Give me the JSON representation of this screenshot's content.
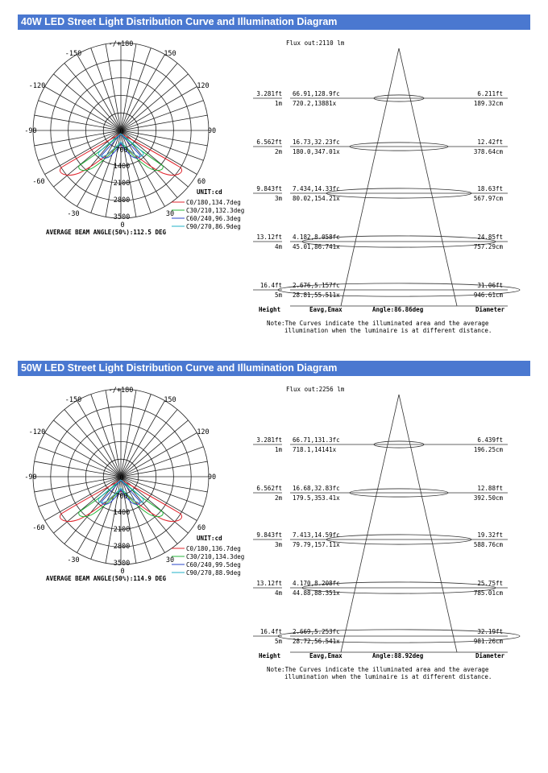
{
  "sections": [
    {
      "title": "40W LED Street Light Distribution Curve and Illumination Diagram",
      "polar": {
        "angle_labels": {
          "top": "-/+180",
          "l150": "-150",
          "r150": "150",
          "l120": "-120",
          "r120": "120",
          "l90": "-90",
          "r90": "90",
          "l60": "-60",
          "r60": "60",
          "l30": "-30",
          "r30": "30",
          "bottom": "0"
        },
        "radial_labels": [
          "0",
          "700",
          "1400",
          "2100",
          "2800",
          "3500"
        ],
        "unit": "UNIT:cd",
        "legend": [
          {
            "label": "C0/180,134.7deg",
            "color": "#e0242c"
          },
          {
            "label": "C30/210,132.3deg",
            "color": "#24b438"
          },
          {
            "label": "C60/240,96.3deg",
            "color": "#2844c8"
          },
          {
            "label": "C90/270,86.9deg",
            "color": "#20b0c8"
          }
        ],
        "beam_angle": "AVERAGE BEAM ANGLE(50%):112.5 DEG"
      },
      "illumination": {
        "flux": "Flux out:2110 lm",
        "rows": [
          {
            "height_ft": "3.281ft",
            "height_m": "1m",
            "fc": "66.91,128.9fc",
            "lx": "720.2,13881x",
            "dia_ft": "6.211ft",
            "dia_cm": "189.32cm"
          },
          {
            "height_ft": "6.562ft",
            "height_m": "2m",
            "fc": "16.73,32.23fc",
            "lx": "180.0,347.01x",
            "dia_ft": "12.42ft",
            "dia_cm": "378.64cm"
          },
          {
            "height_ft": "9.843ft",
            "height_m": "3m",
            "fc": "7.434,14.33fc",
            "lx": "80.02,154.21x",
            "dia_ft": "18.63ft",
            "dia_cm": "567.97cm"
          },
          {
            "height_ft": "13.12ft",
            "height_m": "4m",
            "fc": "4.182,8.058fc",
            "lx": "45.01,86.741x",
            "dia_ft": "24.85ft",
            "dia_cm": "757.29cm"
          },
          {
            "height_ft": "16.4ft",
            "height_m": "5m",
            "fc": "2.676,5.157fc",
            "lx": "28.81,55.511x",
            "dia_ft": "31.06ft",
            "dia_cm": "946.61cm"
          }
        ],
        "footer": {
          "height": "Height",
          "eavg": "Eavg,Emax",
          "angle": "Angle:86.86deg",
          "diameter": "Diameter"
        },
        "note1": "Note:The Curves indicate the illuminated area and the average",
        "note2": "illumination when the luminaire is at different distance."
      }
    },
    {
      "title": "50W LED Street Light Distribution Curve and Illumination Diagram",
      "polar": {
        "angle_labels": {
          "top": "-/+180",
          "l150": "-150",
          "r150": "150",
          "l120": "-120",
          "r120": "120",
          "l90": "-90",
          "r90": "90",
          "l60": "-60",
          "r60": "60",
          "l30": "-30",
          "r30": "30",
          "bottom": "0"
        },
        "radial_labels": [
          "0",
          "700",
          "1400",
          "2100",
          "2800",
          "3500"
        ],
        "unit": "UNIT:cd",
        "legend": [
          {
            "label": "C0/180,136.7deg",
            "color": "#e0242c"
          },
          {
            "label": "C30/210,134.3deg",
            "color": "#24b438"
          },
          {
            "label": "C60/240,99.5deg",
            "color": "#2844c8"
          },
          {
            "label": "C90/270,88.9deg",
            "color": "#20b0c8"
          }
        ],
        "beam_angle": "AVERAGE BEAM ANGLE(50%):114.9 DEG"
      },
      "illumination": {
        "flux": "Flux out:2256 lm",
        "rows": [
          {
            "height_ft": "3.281ft",
            "height_m": "1m",
            "fc": "66.71,131.3fc",
            "lx": "718.1,14141x",
            "dia_ft": "6.439ft",
            "dia_cm": "196.25cm"
          },
          {
            "height_ft": "6.562ft",
            "height_m": "2m",
            "fc": "16.68,32.83fc",
            "lx": "179.5,353.41x",
            "dia_ft": "12.88ft",
            "dia_cm": "392.50cm"
          },
          {
            "height_ft": "9.843ft",
            "height_m": "3m",
            "fc": "7.413,14.59fc",
            "lx": "79.79,157.11x",
            "dia_ft": "19.32ft",
            "dia_cm": "588.76cm"
          },
          {
            "height_ft": "13.12ft",
            "height_m": "4m",
            "fc": "4.170,8.208fc",
            "lx": "44.88,88.351x",
            "dia_ft": "25.75ft",
            "dia_cm": "785.01cm"
          },
          {
            "height_ft": "16.4ft",
            "height_m": "5m",
            "fc": "2.669,5.253fc",
            "lx": "28.72,56.541x",
            "dia_ft": "32.19ft",
            "dia_cm": "981.26cm"
          }
        ],
        "footer": {
          "height": "Height",
          "eavg": "Eavg,Emax",
          "angle": "Angle:88.92deg",
          "diameter": "Diameter"
        },
        "note1": "Note:The Curves indicate the illuminated area and the average",
        "note2": "illumination when the luminaire is at different distance."
      }
    }
  ]
}
